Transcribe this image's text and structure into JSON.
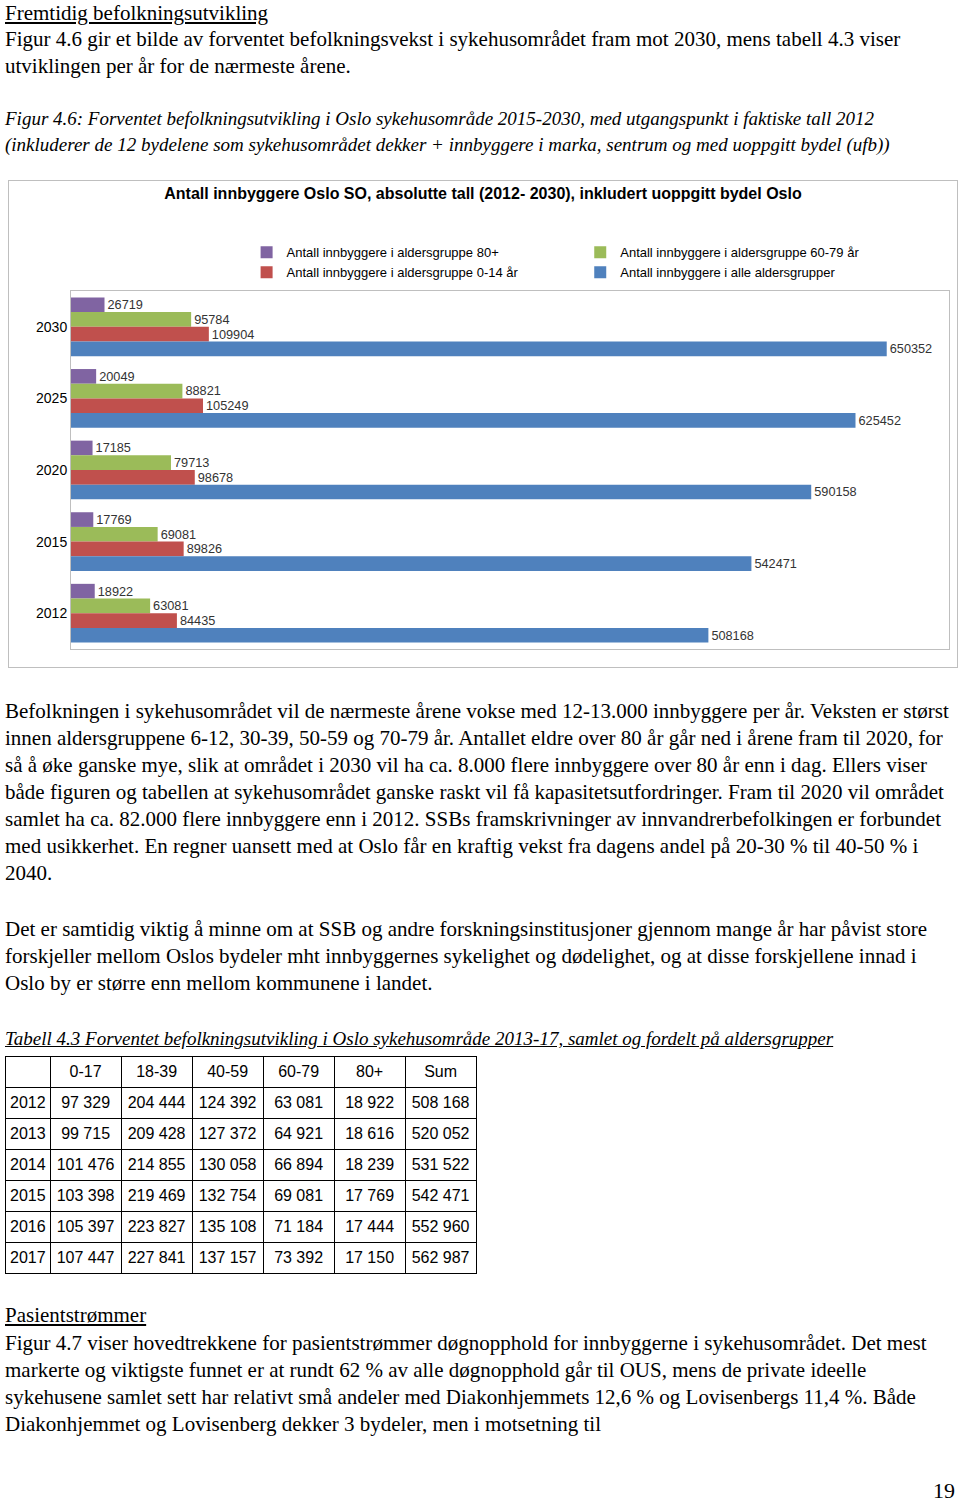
{
  "heading1": "Fremtidig befolkningsutvikling",
  "intro": "Figur 4.6 gir et bilde av forventet befolkningsvekst i sykehusområdet fram mot 2030, mens tabell 4.3 viser utviklingen per år for de nærmeste årene.",
  "figure_caption": "Figur 4.6: Forventet befolkningsutvikling i Oslo sykehusområde 2015-2030, med utgangspunkt i faktiske tall 2012 (inkluderer de 12 bydelene som sykehusområdet dekker + innbyggere i marka, sentrum og med uoppgitt bydel (ufb))",
  "chart_data": {
    "type": "bar",
    "orientation": "horizontal",
    "title": "Antall innbyggere Oslo SO, absolutte tall (2012- 2030), inkludert uoppgitt bydel Oslo",
    "categories": [
      "2030",
      "2025",
      "2020",
      "2015",
      "2012"
    ],
    "series": [
      {
        "name": "Antall innbyggere i aldersgruppe 80+",
        "color": "#8064a2",
        "values": [
          26719,
          20049,
          17185,
          17769,
          18922
        ]
      },
      {
        "name": "Antall innbyggere i aldersgruppe 60-79 år",
        "color": "#9bbb59",
        "values": [
          95784,
          88821,
          79713,
          69081,
          63081
        ]
      },
      {
        "name": "Antall innbyggere i aldersgruppe 0-14 år",
        "color": "#c0504d",
        "values": [
          109904,
          105249,
          98678,
          89826,
          84435
        ]
      },
      {
        "name": "Antall innbyggere i alle aldersgrupper",
        "color": "#4f81bd",
        "values": [
          650352,
          625452,
          590158,
          542471,
          508168
        ]
      }
    ],
    "xlim": [
      0,
      700000
    ],
    "xticks": [],
    "tick_labels": "y",
    "data_labels": true,
    "grid": false,
    "legend": "top"
  },
  "paragraphs_after_chart": [
    "Befolkningen i sykehusområdet vil de nærmeste årene vokse med 12-13.000 innbyggere per år. Veksten er størst innen aldersgruppene 6-12, 30-39, 50-59 og 70-79 år. Antallet eldre over 80 år går ned i årene fram til 2020, for så å øke ganske mye, slik at området i 2030 vil ha ca. 8.000 flere innbyggere over 80 år enn i dag. Ellers viser både figuren og tabellen at sykehusområdet ganske raskt vil få kapasitetsutfordringer. Fram til 2020 vil området samlet ha ca. 82.000 flere innbyggere enn i 2012. SSBs framskrivninger av innvandrerbefolkingen er forbundet med usikkerhet. En regner uansett med at Oslo får en kraftig vekst fra dagens andel på 20-30 % til 40-50 % i 2040.",
    "Det er samtidig viktig å minne om at SSB og andre forskningsinstitusjoner gjennom mange år har påvist store forskjeller mellom Oslos bydeler mht innbyggernes sykelighet og dødelighet, og at disse forskjellene innad i Oslo by er større enn mellom kommunene i landet."
  ],
  "table_caption": "Tabell 4.3 Forventet befolkningsutvikling i Oslo sykehusområde 2013-17, samlet og fordelt på aldersgrupper",
  "table": {
    "header": [
      "0-17",
      "18-39",
      "40-59",
      "60-79",
      "80+",
      "Sum"
    ],
    "rows": [
      [
        "2012",
        "97 329",
        "204 444",
        "124 392",
        "63 081",
        "18 922",
        "508 168"
      ],
      [
        "2013",
        "99 715",
        "209 428",
        "127 372",
        "64 921",
        "18 616",
        "520 052"
      ],
      [
        "2014",
        "101 476",
        "214 855",
        "130 058",
        "66 894",
        "18 239",
        "531 522"
      ],
      [
        "2015",
        "103 398",
        "219 469",
        "132 754",
        "69 081",
        "17 769",
        "542 471"
      ],
      [
        "2016",
        "105 397",
        "223 827",
        "135 108",
        "71 184",
        "17 444",
        "552 960"
      ],
      [
        "2017",
        "107 447",
        "227 841",
        "137 157",
        "73 392",
        "17 150",
        "562 987"
      ]
    ]
  },
  "heading2": "Pasientstrømmer",
  "closing_paragraph": "Figur 4.7 viser hovedtrekkene for pasientstrømmer døgnopphold for innbyggerne i sykehusområdet. Det mest markerte og viktigste funnet er at rundt 62 % av alle døgnopphold går til OUS, mens de private ideelle sykehusene samlet sett har relativt små andeler med Diakonhjemmets 12,6 % og Lovisenbergs 11,4 %. Både Diakonhjemmet og Lovisenberg dekker 3 bydeler, men i motsetning til",
  "page_number": "19"
}
